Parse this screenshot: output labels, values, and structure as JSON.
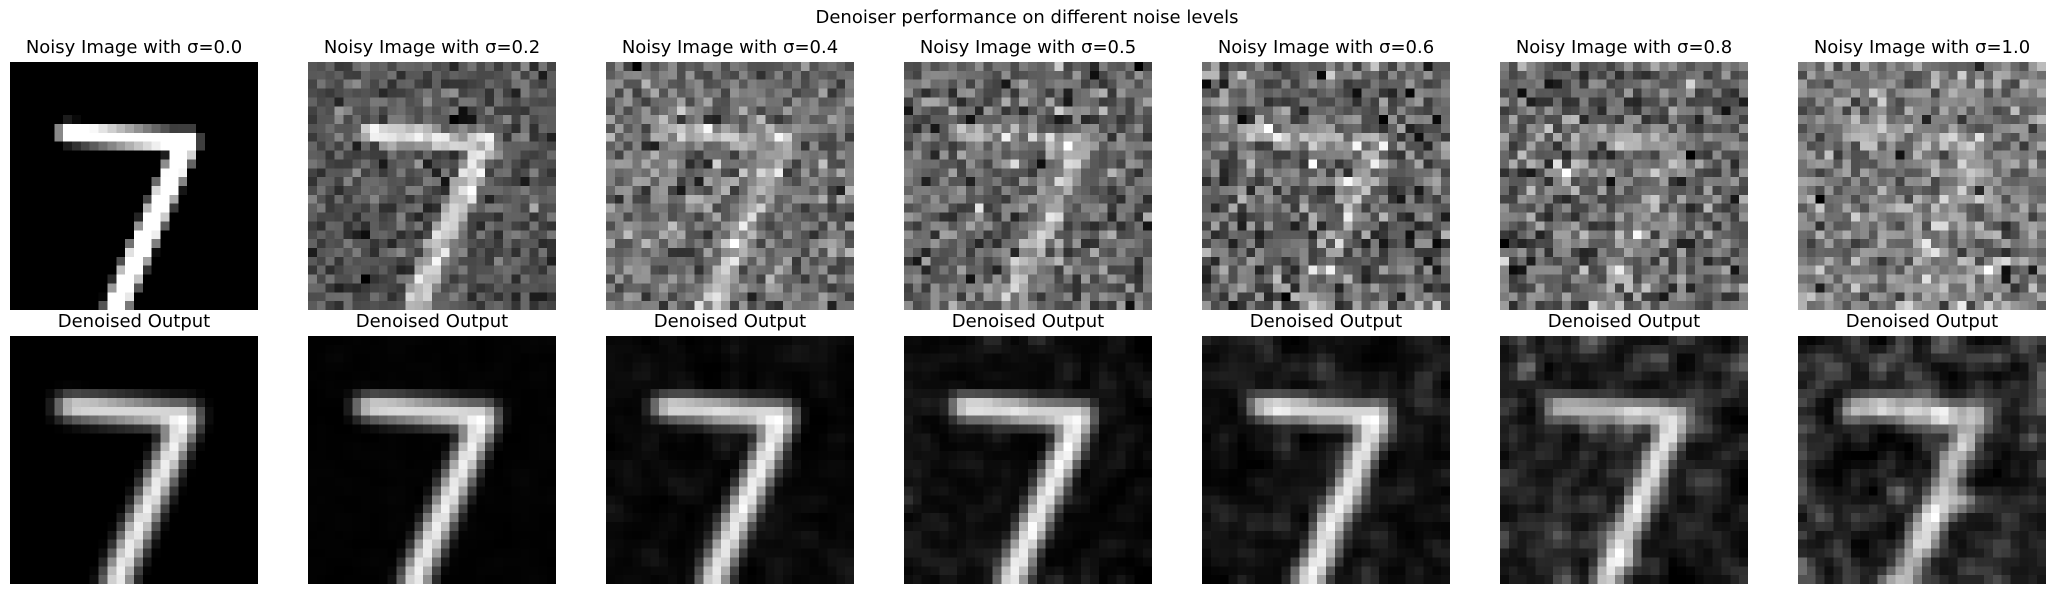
{
  "suptitle": "Denoiser performance on different noise levels",
  "denoised_label": "Denoised Output",
  "panels": [
    {
      "noisy_title": "Noisy Image with σ=0.0",
      "sigma": 0.0
    },
    {
      "noisy_title": "Noisy Image with σ=0.2",
      "sigma": 0.2
    },
    {
      "noisy_title": "Noisy Image with σ=0.4",
      "sigma": 0.4
    },
    {
      "noisy_title": "Noisy Image with σ=0.5",
      "sigma": 0.5
    },
    {
      "noisy_title": "Noisy Image with σ=0.6",
      "sigma": 0.6
    },
    {
      "noisy_title": "Noisy Image with σ=0.8",
      "sigma": 0.8
    },
    {
      "noisy_title": "Noisy Image with σ=1.0",
      "sigma": 1.0
    }
  ],
  "colormap": "gray"
}
